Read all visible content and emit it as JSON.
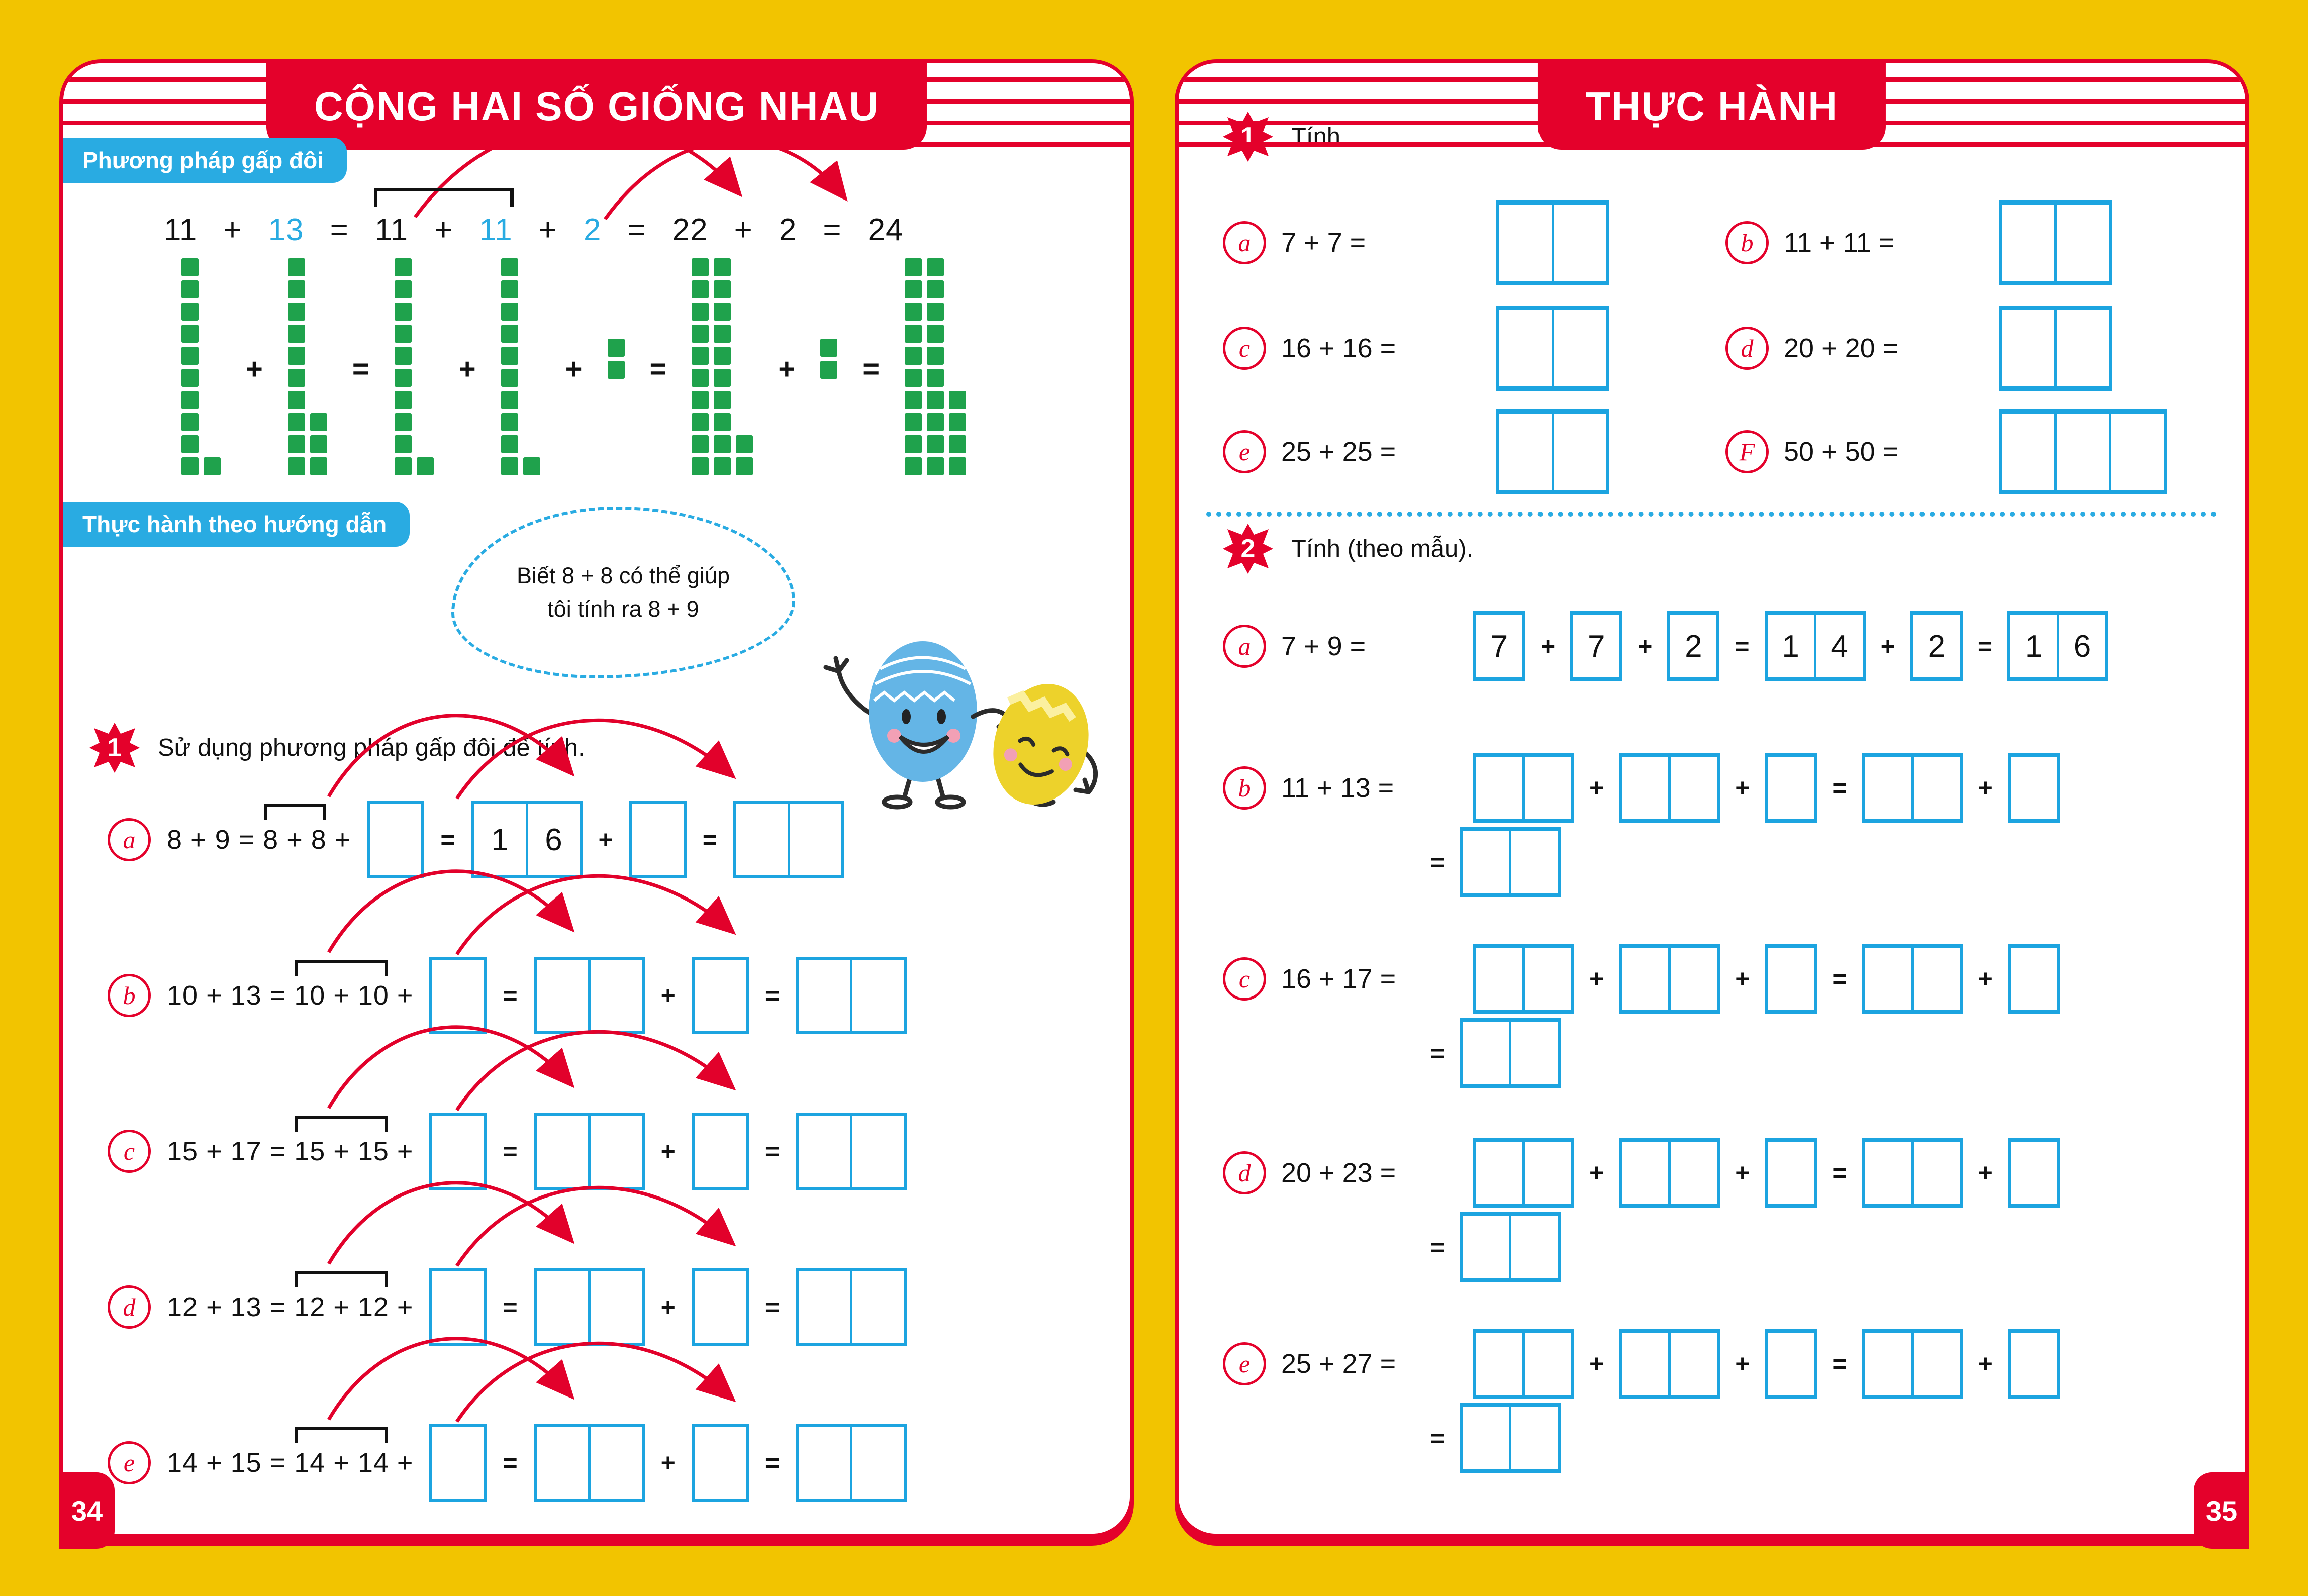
{
  "left_page": {
    "title": "CỘNG HAI SỐ GIỐNG NHAU",
    "page_number": "34",
    "method_label": "Phương pháp gấp đôi",
    "practice_label": "Thực hành theo hướng dẫn",
    "equation": {
      "pre": [
        {
          "t": "11"
        },
        {
          "t": "+"
        },
        {
          "t": "13",
          "blue": true
        },
        {
          "t": "="
        }
      ],
      "pair": [
        {
          "t": "11"
        },
        {
          "t": "+"
        },
        {
          "t": "11",
          "blue": true
        }
      ],
      "post": [
        {
          "t": "+"
        },
        {
          "t": "2",
          "blue": true
        },
        {
          "t": "="
        },
        {
          "t": "22"
        },
        {
          "t": "+"
        },
        {
          "t": "2"
        },
        {
          "t": "="
        },
        {
          "t": "24"
        }
      ]
    },
    "blocks": [
      {
        "cols": [
          10,
          1
        ]
      },
      {
        "op": "+"
      },
      {
        "cols": [
          10,
          3
        ]
      },
      {
        "op": "="
      },
      {
        "cols": [
          10,
          1
        ]
      },
      {
        "op": "+"
      },
      {
        "cols": [
          10,
          1
        ]
      },
      {
        "op": "+"
      },
      {
        "cols": [
          2
        ],
        "mid": true
      },
      {
        "op": "="
      },
      {
        "cols": [
          10,
          10,
          2
        ]
      },
      {
        "op": "+"
      },
      {
        "cols": [
          2
        ],
        "mid": true
      },
      {
        "op": "="
      },
      {
        "cols": [
          10,
          10,
          4
        ]
      }
    ],
    "bubble": [
      "Biết 8 + 8 có thể giúp",
      "tôi tính ra 8 + 9"
    ],
    "exercise": {
      "number": "1",
      "instruction": "Sử dụng phương pháp gấp đôi để tính.",
      "rows": [
        {
          "label": "a",
          "lead": "8 + 9 = ",
          "pair": "8 + 8",
          "tail": " + ",
          "items": [
            [
              ""
            ],
            "=",
            [
              "1",
              "6"
            ],
            "+",
            [
              ""
            ],
            "=",
            [
              "",
              ""
            ]
          ]
        },
        {
          "label": "b",
          "lead": "10 + 13 = ",
          "pair": "10 + 10",
          "tail": " + ",
          "items": [
            [
              ""
            ],
            "=",
            [
              "",
              ""
            ],
            "+",
            [
              ""
            ],
            "=",
            [
              "",
              ""
            ]
          ]
        },
        {
          "label": "c",
          "lead": "15 + 17 = ",
          "pair": "15 + 15",
          "tail": " + ",
          "items": [
            [
              ""
            ],
            "=",
            [
              "",
              ""
            ],
            "+",
            [
              ""
            ],
            "=",
            [
              "",
              ""
            ]
          ]
        },
        {
          "label": "d",
          "lead": "12 + 13 = ",
          "pair": "12 + 12",
          "tail": " + ",
          "items": [
            [
              ""
            ],
            "=",
            [
              "",
              ""
            ],
            "+",
            [
              ""
            ],
            "=",
            [
              "",
              ""
            ]
          ]
        },
        {
          "label": "e",
          "lead": "14 + 15 = ",
          "pair": "14 + 14",
          "tail": " + ",
          "items": [
            [
              ""
            ],
            "=",
            [
              "",
              ""
            ],
            "+",
            [
              ""
            ],
            "=",
            [
              "",
              ""
            ]
          ]
        }
      ]
    }
  },
  "right_page": {
    "title": "THỰC HÀNH",
    "page_number": "35",
    "exercise1": {
      "number": "1",
      "instruction": "Tính.",
      "items": [
        {
          "label": "a",
          "expr": "7 + 7 =",
          "cells": 2
        },
        {
          "label": "b",
          "expr": "11 + 11 =",
          "cells": 2
        },
        {
          "label": "c",
          "expr": "16 + 16 =",
          "cells": 2
        },
        {
          "label": "d",
          "expr": "20 + 20 =",
          "cells": 2
        },
        {
          "label": "e",
          "expr": "25 + 25 =",
          "cells": 2
        },
        {
          "label": "F",
          "expr": "50 + 50 =",
          "cells": 3
        }
      ]
    },
    "exercise2": {
      "number": "2",
      "instruction": "Tính (theo mẫu).",
      "rows": [
        {
          "label": "a",
          "expr": "7 + 9 =",
          "line1": [
            [
              "7"
            ],
            "+",
            [
              "7"
            ],
            "+",
            [
              "2"
            ],
            "=",
            [
              "1",
              "4"
            ],
            "+",
            [
              "2"
            ],
            "=",
            [
              "1",
              "6"
            ]
          ],
          "line2": null
        },
        {
          "label": "b",
          "expr": "11 + 13 =",
          "line1": [
            [
              "",
              ""
            ],
            "+",
            [
              "",
              ""
            ],
            "+",
            [
              ""
            ],
            "=",
            [
              "",
              ""
            ],
            "+",
            [
              ""
            ]
          ],
          "line2": [
            "=",
            [
              "",
              ""
            ]
          ]
        },
        {
          "label": "c",
          "expr": "16 + 17 =",
          "line1": [
            [
              "",
              ""
            ],
            "+",
            [
              "",
              ""
            ],
            "+",
            [
              ""
            ],
            "=",
            [
              "",
              ""
            ],
            "+",
            [
              ""
            ]
          ],
          "line2": [
            "=",
            [
              "",
              ""
            ]
          ]
        },
        {
          "label": "d",
          "expr": "20 + 23 =",
          "line1": [
            [
              "",
              ""
            ],
            "+",
            [
              "",
              ""
            ],
            "+",
            [
              ""
            ],
            "=",
            [
              "",
              ""
            ],
            "+",
            [
              ""
            ]
          ],
          "line2": [
            "=",
            [
              "",
              ""
            ]
          ]
        },
        {
          "label": "e",
          "expr": "25 + 27 =",
          "line1": [
            [
              "",
              ""
            ],
            "+",
            [
              "",
              ""
            ],
            "+",
            [
              ""
            ],
            "=",
            [
              "",
              ""
            ],
            "+",
            [
              ""
            ]
          ],
          "line2": [
            "=",
            [
              "",
              ""
            ]
          ]
        }
      ]
    }
  }
}
